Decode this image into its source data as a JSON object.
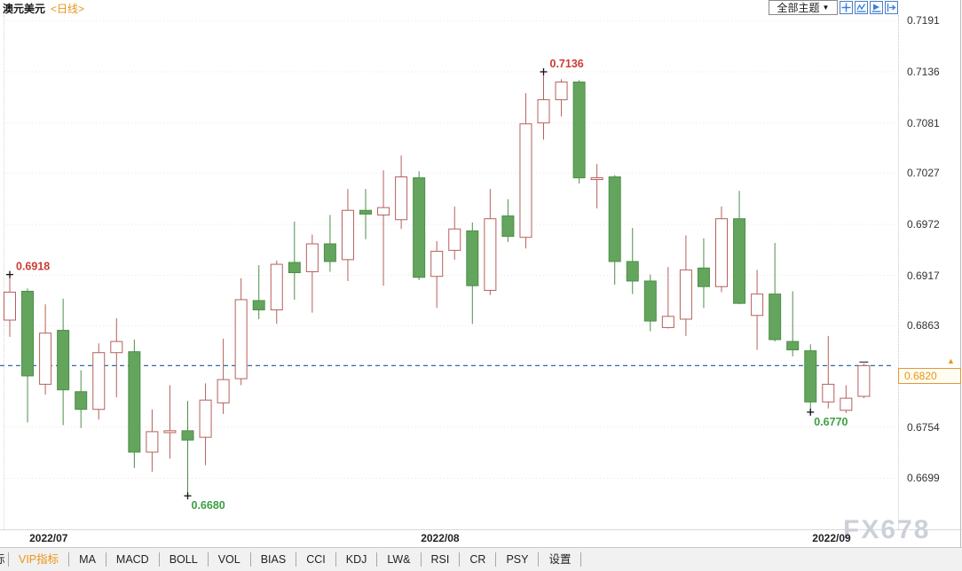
{
  "header": {
    "title": "澳元美元",
    "period": "<日线>",
    "theme_dropdown": {
      "label": "全部主题",
      "caret": "▼"
    },
    "tool_icons": [
      "crosshair-icon",
      "trend-chart-icon",
      "play-chart-icon",
      "exit-chart-icon"
    ]
  },
  "price_label": {
    "value": "0.6820"
  },
  "watermark": "FX678",
  "toolbar": {
    "clipped_item": "标",
    "items": [
      {
        "label": "VIP指标",
        "active": true
      },
      {
        "label": "MA",
        "active": false
      },
      {
        "label": "MACD",
        "active": false
      },
      {
        "label": "BOLL",
        "active": false
      },
      {
        "label": "VOL",
        "active": false
      },
      {
        "label": "BIAS",
        "active": false
      },
      {
        "label": "CCI",
        "active": false
      },
      {
        "label": "KDJ",
        "active": false
      },
      {
        "label": "LW&",
        "active": false
      },
      {
        "label": "RSI",
        "active": false
      },
      {
        "label": "CR",
        "active": false
      },
      {
        "label": "PSY",
        "active": false
      },
      {
        "label": "设置",
        "active": false
      }
    ]
  },
  "colors": {
    "up_border": "#b5605c",
    "up_fill": "#ffffff",
    "down_fill": "#63a55d",
    "down_border": "#4e8e49",
    "annotation_up": "#cc3b36",
    "annotation_down": "#3f9e44",
    "price_line": "#2e6da4",
    "price_label_text": "#e8941a",
    "price_label_border": "#e0993c",
    "gridline": "#e8c9c9",
    "icon_blue": "#3d7edb"
  },
  "chart_data": {
    "type": "candlestick",
    "title": "澳元美元 日线",
    "ylim": [
      0.6644,
      0.7197
    ],
    "y_ticks": [
      "0.7191",
      "0.7136",
      "0.7081",
      "0.7027",
      "0.6972",
      "0.6917",
      "0.6863",
      "0.6754",
      "0.6699"
    ],
    "current_price": 0.682,
    "x_ticks": [
      {
        "label": "2022/07",
        "candle_index": 2
      },
      {
        "label": "2022/08",
        "candle_index": 24
      },
      {
        "label": "2022/09",
        "candle_index": 46
      }
    ],
    "annotations": [
      {
        "text": "0.6918",
        "value": 0.6918,
        "candle_index": 0,
        "pos": "high",
        "color": "#cc3b36"
      },
      {
        "text": "0.7136",
        "value": 0.7136,
        "candle_index": 30,
        "pos": "high",
        "color": "#cc3b36"
      },
      {
        "text": "0.6680",
        "value": 0.668,
        "candle_index": 10,
        "pos": "low",
        "color": "#3f9e44"
      },
      {
        "text": "0.6770",
        "value": 0.677,
        "candle_index": 45,
        "pos": "low",
        "color": "#3f9e44"
      }
    ],
    "candles": [
      [
        0.6869,
        0.6918,
        0.6851,
        0.6899
      ],
      [
        0.69,
        0.6903,
        0.6759,
        0.6809
      ],
      [
        0.68,
        0.6886,
        0.6789,
        0.6855
      ],
      [
        0.6858,
        0.6892,
        0.6756,
        0.6794
      ],
      [
        0.6792,
        0.6815,
        0.6753,
        0.6773
      ],
      [
        0.6773,
        0.6844,
        0.6762,
        0.6834
      ],
      [
        0.6834,
        0.6871,
        0.6786,
        0.6846
      ],
      [
        0.6835,
        0.6848,
        0.671,
        0.6727
      ],
      [
        0.6727,
        0.6773,
        0.6706,
        0.6749
      ],
      [
        0.6748,
        0.6799,
        0.672,
        0.675
      ],
      [
        0.675,
        0.6782,
        0.668,
        0.674
      ],
      [
        0.6743,
        0.6801,
        0.6713,
        0.6783
      ],
      [
        0.678,
        0.6849,
        0.6768,
        0.6805
      ],
      [
        0.6806,
        0.6914,
        0.6799,
        0.6891
      ],
      [
        0.689,
        0.6928,
        0.687,
        0.688
      ],
      [
        0.688,
        0.6933,
        0.6865,
        0.6929
      ],
      [
        0.6931,
        0.6975,
        0.6891,
        0.692
      ],
      [
        0.6921,
        0.6961,
        0.6877,
        0.6951
      ],
      [
        0.6951,
        0.6982,
        0.6921,
        0.6932
      ],
      [
        0.6934,
        0.701,
        0.6911,
        0.6987
      ],
      [
        0.6987,
        0.701,
        0.6956,
        0.6983
      ],
      [
        0.6982,
        0.703,
        0.6906,
        0.699
      ],
      [
        0.6977,
        0.7046,
        0.6967,
        0.7023
      ],
      [
        0.7022,
        0.7029,
        0.6912,
        0.6915
      ],
      [
        0.6916,
        0.6954,
        0.6882,
        0.6943
      ],
      [
        0.6944,
        0.6991,
        0.6934,
        0.6967
      ],
      [
        0.6965,
        0.6974,
        0.6865,
        0.6906
      ],
      [
        0.6901,
        0.701,
        0.6896,
        0.6978
      ],
      [
        0.6981,
        0.6999,
        0.6953,
        0.6959
      ],
      [
        0.6958,
        0.7113,
        0.6946,
        0.708
      ],
      [
        0.7081,
        0.7136,
        0.7063,
        0.7106
      ],
      [
        0.7106,
        0.7128,
        0.7088,
        0.7125
      ],
      [
        0.7125,
        0.7127,
        0.7016,
        0.7022
      ],
      [
        0.7021,
        0.7037,
        0.6989,
        0.7022
      ],
      [
        0.7023,
        0.7025,
        0.6907,
        0.6932
      ],
      [
        0.6932,
        0.6968,
        0.6897,
        0.6911
      ],
      [
        0.6911,
        0.6918,
        0.6857,
        0.6868
      ],
      [
        0.6861,
        0.6926,
        0.686,
        0.6873
      ],
      [
        0.687,
        0.696,
        0.6852,
        0.6923
      ],
      [
        0.6925,
        0.6957,
        0.6882,
        0.6905
      ],
      [
        0.6905,
        0.6991,
        0.6899,
        0.6978
      ],
      [
        0.6978,
        0.7008,
        0.6886,
        0.6887
      ],
      [
        0.6874,
        0.6923,
        0.6837,
        0.6897
      ],
      [
        0.6897,
        0.6952,
        0.6846,
        0.6848
      ],
      [
        0.6846,
        0.69,
        0.683,
        0.6837
      ],
      [
        0.6836,
        0.6843,
        0.677,
        0.6781
      ],
      [
        0.6781,
        0.6852,
        0.6774,
        0.68
      ],
      [
        0.6772,
        0.6799,
        0.6769,
        0.6785
      ],
      [
        0.6787,
        0.6822,
        0.6785,
        0.682
      ]
    ]
  }
}
